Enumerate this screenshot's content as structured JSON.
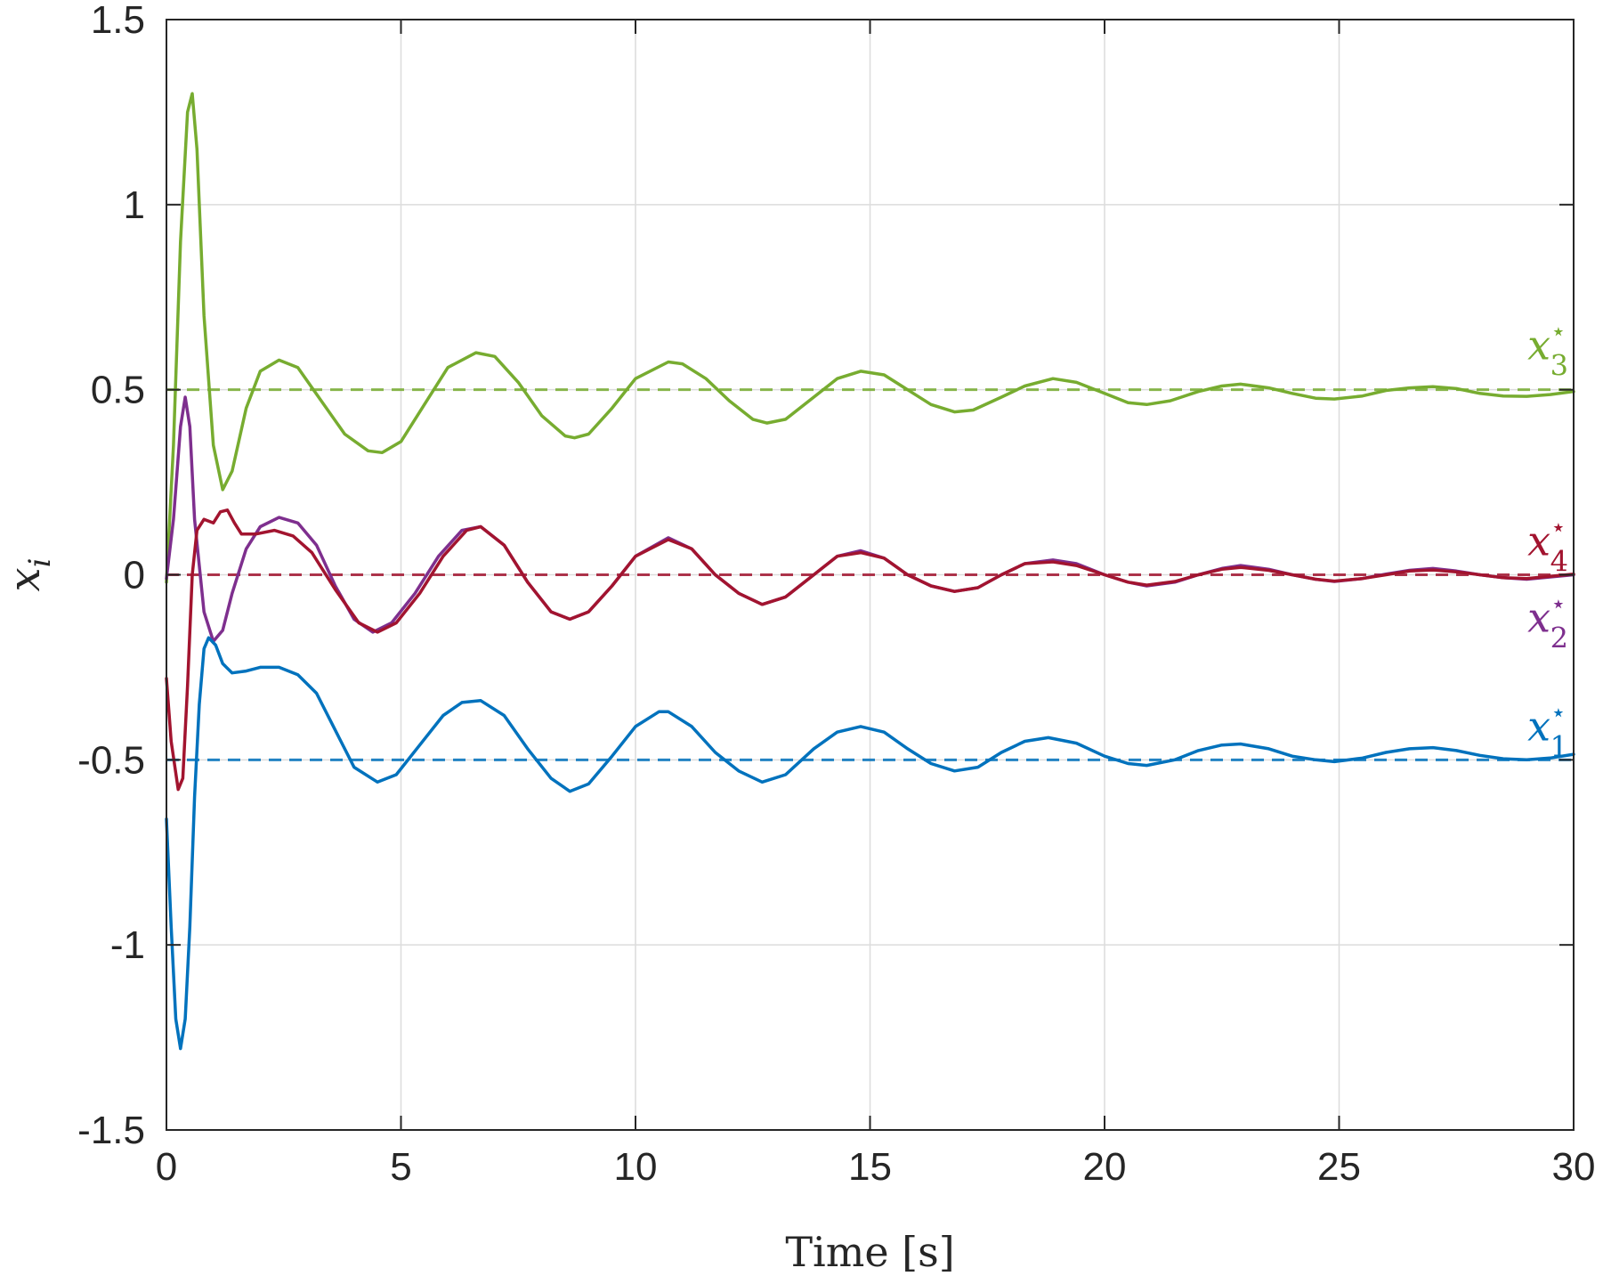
{
  "chart_data": {
    "type": "line",
    "xlabel": "Time [s]",
    "ylabel": "x_i",
    "xlim": [
      0,
      30
    ],
    "ylim": [
      -1.5,
      1.5
    ],
    "xticks": [
      "0",
      "5",
      "10",
      "15",
      "20",
      "25",
      "30"
    ],
    "xtick_values": [
      0,
      5,
      10,
      15,
      20,
      25,
      30
    ],
    "yticks": [
      "-1.5",
      "-1",
      "-0.5",
      "0",
      "0.5",
      "1",
      "1.5"
    ],
    "ytick_values": [
      -1.5,
      -1,
      -0.5,
      0,
      0.5,
      1,
      1.5
    ],
    "grid": true,
    "series": [
      {
        "key": "x3",
        "color": "#77AC30",
        "points": [
          [
            0,
            -0.02
          ],
          [
            0.15,
            0.35
          ],
          [
            0.3,
            0.9
          ],
          [
            0.45,
            1.25
          ],
          [
            0.55,
            1.3
          ],
          [
            0.65,
            1.15
          ],
          [
            0.8,
            0.7
          ],
          [
            1.0,
            0.35
          ],
          [
            1.2,
            0.23
          ],
          [
            1.4,
            0.28
          ],
          [
            1.7,
            0.45
          ],
          [
            2.0,
            0.55
          ],
          [
            2.4,
            0.58
          ],
          [
            2.8,
            0.56
          ],
          [
            3.3,
            0.47
          ],
          [
            3.8,
            0.38
          ],
          [
            4.3,
            0.335
          ],
          [
            4.6,
            0.33
          ],
          [
            5.0,
            0.36
          ],
          [
            5.5,
            0.46
          ],
          [
            6.0,
            0.56
          ],
          [
            6.6,
            0.6
          ],
          [
            7.0,
            0.59
          ],
          [
            7.5,
            0.52
          ],
          [
            8.0,
            0.43
          ],
          [
            8.5,
            0.375
          ],
          [
            8.7,
            0.37
          ],
          [
            9.0,
            0.38
          ],
          [
            9.5,
            0.45
          ],
          [
            10.0,
            0.53
          ],
          [
            10.7,
            0.575
          ],
          [
            11.0,
            0.57
          ],
          [
            11.5,
            0.53
          ],
          [
            12.0,
            0.47
          ],
          [
            12.5,
            0.42
          ],
          [
            12.8,
            0.41
          ],
          [
            13.2,
            0.42
          ],
          [
            13.8,
            0.48
          ],
          [
            14.3,
            0.53
          ],
          [
            14.8,
            0.55
          ],
          [
            15.3,
            0.54
          ],
          [
            15.8,
            0.5
          ],
          [
            16.3,
            0.46
          ],
          [
            16.8,
            0.44
          ],
          [
            17.2,
            0.445
          ],
          [
            17.8,
            0.48
          ],
          [
            18.3,
            0.51
          ],
          [
            18.9,
            0.53
          ],
          [
            19.4,
            0.52
          ],
          [
            20.0,
            0.49
          ],
          [
            20.5,
            0.465
          ],
          [
            20.9,
            0.46
          ],
          [
            21.4,
            0.47
          ],
          [
            22.0,
            0.495
          ],
          [
            22.5,
            0.51
          ],
          [
            22.9,
            0.515
          ],
          [
            23.5,
            0.505
          ],
          [
            24.0,
            0.49
          ],
          [
            24.5,
            0.477
          ],
          [
            24.9,
            0.475
          ],
          [
            25.5,
            0.483
          ],
          [
            26.0,
            0.498
          ],
          [
            26.5,
            0.505
          ],
          [
            27.0,
            0.508
          ],
          [
            27.5,
            0.503
          ],
          [
            28.0,
            0.49
          ],
          [
            28.5,
            0.483
          ],
          [
            29.0,
            0.482
          ],
          [
            29.5,
            0.487
          ],
          [
            30.0,
            0.495
          ]
        ]
      },
      {
        "key": "x2",
        "color": "#7E2F8E",
        "points": [
          [
            0,
            -0.01
          ],
          [
            0.15,
            0.15
          ],
          [
            0.3,
            0.4
          ],
          [
            0.4,
            0.48
          ],
          [
            0.5,
            0.4
          ],
          [
            0.6,
            0.15
          ],
          [
            0.8,
            -0.1
          ],
          [
            1.0,
            -0.18
          ],
          [
            1.2,
            -0.15
          ],
          [
            1.4,
            -0.05
          ],
          [
            1.7,
            0.07
          ],
          [
            2.0,
            0.13
          ],
          [
            2.4,
            0.155
          ],
          [
            2.8,
            0.14
          ],
          [
            3.2,
            0.08
          ],
          [
            3.6,
            -0.03
          ],
          [
            4.0,
            -0.12
          ],
          [
            4.4,
            -0.155
          ],
          [
            4.8,
            -0.13
          ],
          [
            5.3,
            -0.05
          ],
          [
            5.8,
            0.05
          ],
          [
            6.3,
            0.12
          ],
          [
            6.7,
            0.13
          ],
          [
            7.2,
            0.08
          ],
          [
            7.7,
            -0.02
          ],
          [
            8.2,
            -0.1
          ],
          [
            8.6,
            -0.12
          ],
          [
            9.0,
            -0.1
          ],
          [
            9.5,
            -0.03
          ],
          [
            10.0,
            0.05
          ],
          [
            10.7,
            0.1
          ],
          [
            11.2,
            0.07
          ],
          [
            11.7,
            0.0
          ],
          [
            12.2,
            -0.05
          ],
          [
            12.7,
            -0.08
          ],
          [
            13.2,
            -0.06
          ],
          [
            13.8,
            0.0
          ],
          [
            14.3,
            0.05
          ],
          [
            14.8,
            0.065
          ],
          [
            15.3,
            0.045
          ],
          [
            15.8,
            0.0
          ],
          [
            16.3,
            -0.03
          ],
          [
            16.8,
            -0.045
          ],
          [
            17.3,
            -0.035
          ],
          [
            17.8,
            0.0
          ],
          [
            18.3,
            0.03
          ],
          [
            18.9,
            0.04
          ],
          [
            19.4,
            0.03
          ],
          [
            20.0,
            0.0
          ],
          [
            20.5,
            -0.02
          ],
          [
            20.9,
            -0.03
          ],
          [
            21.5,
            -0.02
          ],
          [
            22.0,
            0.0
          ],
          [
            22.5,
            0.017
          ],
          [
            22.9,
            0.025
          ],
          [
            23.5,
            0.015
          ],
          [
            24.0,
            0.0
          ],
          [
            24.5,
            -0.012
          ],
          [
            24.9,
            -0.018
          ],
          [
            25.5,
            -0.01
          ],
          [
            26.0,
            0.002
          ],
          [
            26.5,
            0.012
          ],
          [
            27.0,
            0.017
          ],
          [
            27.5,
            0.01
          ],
          [
            28.0,
            0.0
          ],
          [
            28.5,
            -0.008
          ],
          [
            29.0,
            -0.012
          ],
          [
            29.5,
            -0.006
          ],
          [
            30.0,
            0.0
          ]
        ]
      },
      {
        "key": "x4",
        "color": "#A2142F",
        "points": [
          [
            0,
            -0.28
          ],
          [
            0.1,
            -0.45
          ],
          [
            0.25,
            -0.58
          ],
          [
            0.35,
            -0.55
          ],
          [
            0.45,
            -0.3
          ],
          [
            0.55,
            0.0
          ],
          [
            0.65,
            0.12
          ],
          [
            0.8,
            0.15
          ],
          [
            1.0,
            0.14
          ],
          [
            1.15,
            0.17
          ],
          [
            1.3,
            0.175
          ],
          [
            1.45,
            0.14
          ],
          [
            1.6,
            0.11
          ],
          [
            1.9,
            0.11
          ],
          [
            2.3,
            0.12
          ],
          [
            2.7,
            0.105
          ],
          [
            3.1,
            0.06
          ],
          [
            3.6,
            -0.04
          ],
          [
            4.1,
            -0.13
          ],
          [
            4.5,
            -0.155
          ],
          [
            4.9,
            -0.13
          ],
          [
            5.4,
            -0.05
          ],
          [
            5.9,
            0.05
          ],
          [
            6.4,
            0.12
          ],
          [
            6.7,
            0.13
          ],
          [
            7.2,
            0.08
          ],
          [
            7.7,
            -0.02
          ],
          [
            8.2,
            -0.1
          ],
          [
            8.6,
            -0.12
          ],
          [
            9.0,
            -0.1
          ],
          [
            9.5,
            -0.03
          ],
          [
            10.0,
            0.05
          ],
          [
            10.7,
            0.095
          ],
          [
            11.2,
            0.07
          ],
          [
            11.7,
            0.0
          ],
          [
            12.2,
            -0.05
          ],
          [
            12.7,
            -0.08
          ],
          [
            13.2,
            -0.06
          ],
          [
            13.8,
            0.0
          ],
          [
            14.3,
            0.05
          ],
          [
            14.8,
            0.06
          ],
          [
            15.3,
            0.045
          ],
          [
            15.8,
            0.0
          ],
          [
            16.3,
            -0.03
          ],
          [
            16.8,
            -0.045
          ],
          [
            17.3,
            -0.035
          ],
          [
            17.8,
            0.0
          ],
          [
            18.3,
            0.03
          ],
          [
            18.9,
            0.035
          ],
          [
            19.4,
            0.025
          ],
          [
            20.0,
            0.0
          ],
          [
            20.5,
            -0.02
          ],
          [
            20.9,
            -0.028
          ],
          [
            21.5,
            -0.018
          ],
          [
            22.0,
            0.0
          ],
          [
            22.5,
            0.015
          ],
          [
            22.9,
            0.02
          ],
          [
            23.5,
            0.012
          ],
          [
            24.0,
            0.0
          ],
          [
            24.5,
            -0.012
          ],
          [
            24.9,
            -0.017
          ],
          [
            25.5,
            -0.01
          ],
          [
            26.0,
            0.0
          ],
          [
            26.5,
            0.01
          ],
          [
            27.0,
            0.013
          ],
          [
            27.5,
            0.008
          ],
          [
            28.0,
            0.0
          ],
          [
            28.5,
            -0.008
          ],
          [
            29.0,
            -0.01
          ],
          [
            29.5,
            -0.004
          ],
          [
            30.0,
            0.002
          ]
        ]
      },
      {
        "key": "x1",
        "color": "#0072BD",
        "points": [
          [
            0,
            -0.66
          ],
          [
            0.1,
            -0.95
          ],
          [
            0.2,
            -1.2
          ],
          [
            0.3,
            -1.28
          ],
          [
            0.4,
            -1.2
          ],
          [
            0.5,
            -0.95
          ],
          [
            0.6,
            -0.6
          ],
          [
            0.7,
            -0.35
          ],
          [
            0.8,
            -0.2
          ],
          [
            0.9,
            -0.17
          ],
          [
            1.05,
            -0.19
          ],
          [
            1.2,
            -0.24
          ],
          [
            1.4,
            -0.265
          ],
          [
            1.7,
            -0.26
          ],
          [
            2.0,
            -0.25
          ],
          [
            2.4,
            -0.25
          ],
          [
            2.8,
            -0.27
          ],
          [
            3.2,
            -0.32
          ],
          [
            3.6,
            -0.42
          ],
          [
            4.0,
            -0.52
          ],
          [
            4.5,
            -0.56
          ],
          [
            4.9,
            -0.54
          ],
          [
            5.4,
            -0.46
          ],
          [
            5.9,
            -0.38
          ],
          [
            6.3,
            -0.345
          ],
          [
            6.7,
            -0.34
          ],
          [
            7.2,
            -0.38
          ],
          [
            7.7,
            -0.47
          ],
          [
            8.2,
            -0.55
          ],
          [
            8.6,
            -0.585
          ],
          [
            9.0,
            -0.565
          ],
          [
            9.5,
            -0.49
          ],
          [
            10.0,
            -0.41
          ],
          [
            10.5,
            -0.37
          ],
          [
            10.7,
            -0.37
          ],
          [
            11.2,
            -0.41
          ],
          [
            11.7,
            -0.48
          ],
          [
            12.2,
            -0.53
          ],
          [
            12.7,
            -0.56
          ],
          [
            13.2,
            -0.54
          ],
          [
            13.8,
            -0.47
          ],
          [
            14.3,
            -0.425
          ],
          [
            14.8,
            -0.41
          ],
          [
            15.3,
            -0.425
          ],
          [
            15.8,
            -0.47
          ],
          [
            16.3,
            -0.51
          ],
          [
            16.8,
            -0.53
          ],
          [
            17.3,
            -0.52
          ],
          [
            17.8,
            -0.48
          ],
          [
            18.3,
            -0.45
          ],
          [
            18.8,
            -0.44
          ],
          [
            19.4,
            -0.455
          ],
          [
            20.0,
            -0.49
          ],
          [
            20.5,
            -0.51
          ],
          [
            20.9,
            -0.515
          ],
          [
            21.5,
            -0.5
          ],
          [
            22.0,
            -0.475
          ],
          [
            22.5,
            -0.46
          ],
          [
            22.9,
            -0.457
          ],
          [
            23.5,
            -0.47
          ],
          [
            24.0,
            -0.49
          ],
          [
            24.5,
            -0.5
          ],
          [
            24.9,
            -0.505
          ],
          [
            25.5,
            -0.495
          ],
          [
            26.0,
            -0.48
          ],
          [
            26.5,
            -0.47
          ],
          [
            27.0,
            -0.467
          ],
          [
            27.5,
            -0.475
          ],
          [
            28.0,
            -0.488
          ],
          [
            28.5,
            -0.497
          ],
          [
            29.0,
            -0.5
          ],
          [
            29.5,
            -0.495
          ],
          [
            30.0,
            -0.485
          ]
        ]
      }
    ],
    "references": [
      {
        "key": "x3_star",
        "y": 0.5,
        "color": "#77AC30",
        "label": "x",
        "sub": "3",
        "sup": "⋆"
      },
      {
        "key": "x4_star",
        "y": 0.0,
        "color": "#A2142F",
        "label": "x",
        "sub": "4",
        "sup": "⋆"
      },
      {
        "key": "x2_star",
        "y": 0.0,
        "color": "#7E2F8E",
        "label": "x",
        "sub": "2",
        "sup": "⋆"
      },
      {
        "key": "x1_star",
        "y": -0.5,
        "color": "#0072BD",
        "label": "x",
        "sub": "1",
        "sup": "⋆"
      }
    ]
  }
}
